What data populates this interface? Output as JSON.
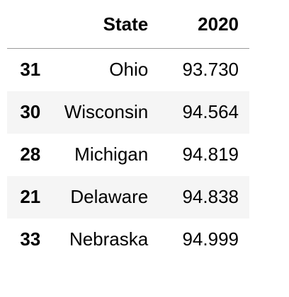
{
  "table": {
    "columns": [
      "",
      "State",
      "2020"
    ],
    "rows": [
      {
        "index": "31",
        "state": "Ohio",
        "value": "93.730"
      },
      {
        "index": "30",
        "state": "Wisconsin",
        "value": "94.564"
      },
      {
        "index": "28",
        "state": "Michigan",
        "value": "94.819"
      },
      {
        "index": "21",
        "state": "Delaware",
        "value": "94.838"
      },
      {
        "index": "33",
        "state": "Nebraska",
        "value": "94.999"
      }
    ]
  },
  "colors": {
    "stripe": "#f5f5f5",
    "header_rule": "#9a9a9a",
    "text": "#000000"
  }
}
